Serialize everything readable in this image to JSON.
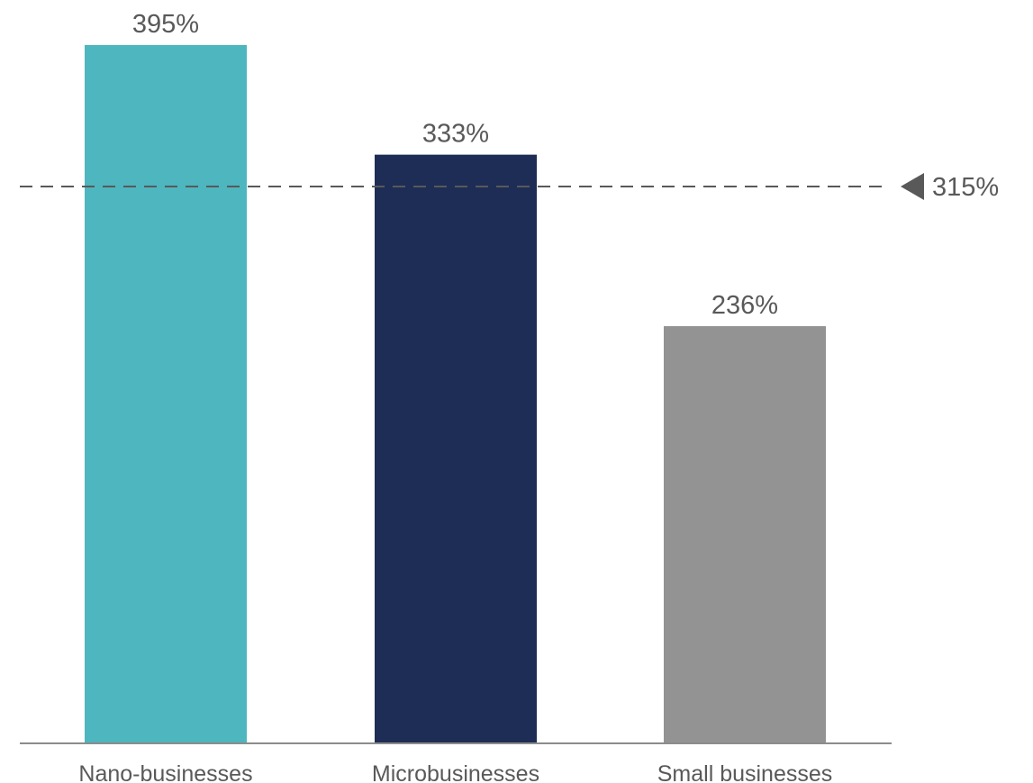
{
  "chart_data": {
    "type": "bar",
    "categories": [
      "Nano-businesses",
      "Microbusinesses",
      "Small businesses"
    ],
    "values": [
      395,
      333,
      236
    ],
    "value_labels": [
      "395%",
      "333%",
      "236%"
    ],
    "colors": [
      "#4db6bf",
      "#1e2d55",
      "#939393"
    ],
    "ylim": [
      0,
      395
    ],
    "grid": false,
    "reference_line": {
      "value": 315,
      "label": "315%",
      "style": "dashed",
      "color": "#595959"
    }
  }
}
